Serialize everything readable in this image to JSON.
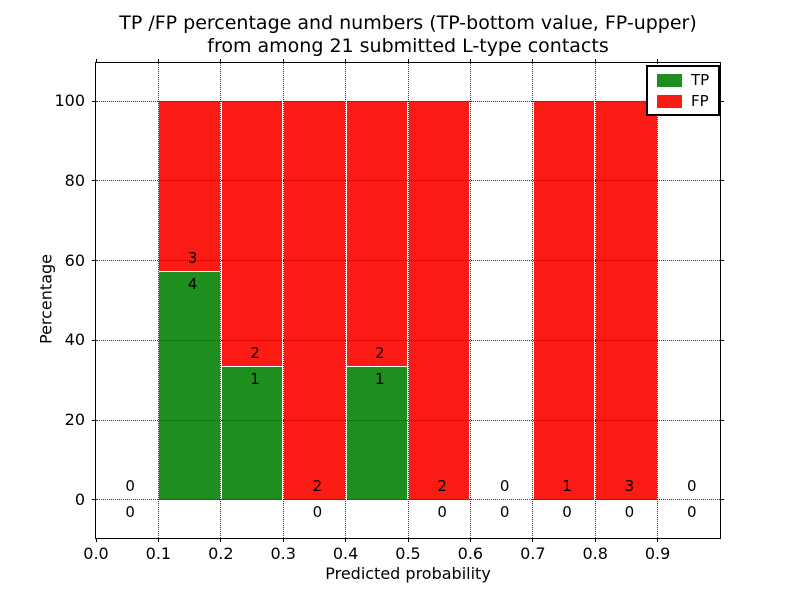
{
  "title": {
    "line1": "TP /FP percentage and numbers (TP-bottom value, FP-upper)",
    "line2": "from among 21 submitted L-type contacts"
  },
  "axes": {
    "xlabel": "Predicted probability",
    "ylabel": "Percentage"
  },
  "legend": {
    "position": "upper right",
    "items": [
      {
        "label": "TP",
        "color": "#1e8e1e"
      },
      {
        "label": "FP",
        "color": "#fb1b15"
      }
    ]
  },
  "chart_data": {
    "type": "bar",
    "stacked": true,
    "normalized": "percentage",
    "title": "TP /FP percentage and numbers (TP-bottom value, FP-upper) from among 21 submitted L-type contacts",
    "xlabel": "Predicted probability",
    "ylabel": "Percentage",
    "xlim": [
      0.0,
      1.0
    ],
    "ylim": [
      -9.6,
      109.6
    ],
    "grid": true,
    "legend_position": "upper right",
    "colors": {
      "tp": "#1e8e1e",
      "fp": "#fb1b15"
    },
    "x_ticks": [
      {
        "v": 0.0,
        "label": "0.0"
      },
      {
        "v": 0.1,
        "label": "0.1"
      },
      {
        "v": 0.2,
        "label": "0.2"
      },
      {
        "v": 0.3,
        "label": "0.3"
      },
      {
        "v": 0.4,
        "label": "0.4"
      },
      {
        "v": 0.5,
        "label": "0.5"
      },
      {
        "v": 0.6,
        "label": "0.6"
      },
      {
        "v": 0.7,
        "label": "0.7"
      },
      {
        "v": 0.8,
        "label": "0.8"
      },
      {
        "v": 0.9,
        "label": "0.9"
      }
    ],
    "y_ticks": [
      {
        "v": 0,
        "label": "0"
      },
      {
        "v": 20,
        "label": "20"
      },
      {
        "v": 40,
        "label": "40"
      },
      {
        "v": 60,
        "label": "60"
      },
      {
        "v": 80,
        "label": "80"
      },
      {
        "v": 100,
        "label": "100"
      }
    ],
    "series": [
      {
        "name": "TP",
        "counts": [
          0,
          4,
          1,
          0,
          1,
          0,
          0,
          0,
          0,
          0
        ]
      },
      {
        "name": "FP",
        "counts": [
          0,
          3,
          2,
          2,
          2,
          2,
          0,
          1,
          3,
          0
        ]
      }
    ],
    "bins": [
      {
        "range": [
          0.0,
          0.1
        ],
        "tp": 0,
        "fp": 0
      },
      {
        "range": [
          0.1,
          0.2
        ],
        "tp": 4,
        "fp": 3
      },
      {
        "range": [
          0.2,
          0.3
        ],
        "tp": 1,
        "fp": 2
      },
      {
        "range": [
          0.3,
          0.4
        ],
        "tp": 0,
        "fp": 2
      },
      {
        "range": [
          0.4,
          0.5
        ],
        "tp": 1,
        "fp": 2
      },
      {
        "range": [
          0.5,
          0.6
        ],
        "tp": 0,
        "fp": 2
      },
      {
        "range": [
          0.6,
          0.7
        ],
        "tp": 0,
        "fp": 0
      },
      {
        "range": [
          0.7,
          0.8
        ],
        "tp": 0,
        "fp": 1
      },
      {
        "range": [
          0.8,
          0.9
        ],
        "tp": 0,
        "fp": 3
      },
      {
        "range": [
          0.9,
          1.0
        ],
        "tp": 0,
        "fp": 0
      }
    ]
  }
}
